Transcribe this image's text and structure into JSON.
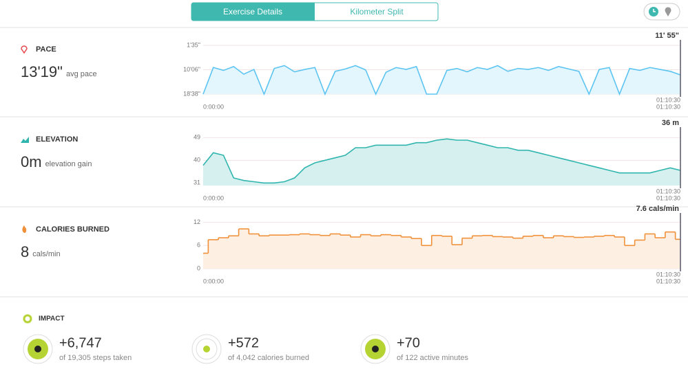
{
  "tabs": [
    "Exercise Details",
    "Kilometer Split"
  ],
  "metrics": [
    {
      "title": "PACE",
      "value": "13'19\"",
      "unit": "avg pace",
      "chart": {
        "type": "area",
        "xlim": [
          0,
          4230
        ],
        "ylim": [
          1118,
          95
        ],
        "grid": true,
        "yticks": [
          {
            "value": 95,
            "label": "1'35\""
          },
          {
            "value": 606,
            "label": "10'06\""
          },
          {
            "value": 1118,
            "label": "18'38\""
          }
        ],
        "xticks": [
          {
            "value": 0,
            "label": "0:00:00"
          },
          {
            "value": 4230,
            "label": "01:10:30"
          }
        ],
        "cursor": {
          "x": {
            "value": 4230,
            "label": "01:10:30"
          },
          "y": {
            "value": 715,
            "label": "11' 55\""
          }
        },
        "series": [
          {
            "color": "#5bc4f1",
            "fill": "#e3f5fd",
            "x": [
              0,
              90,
              180,
              270,
              360,
              450,
              540,
              630,
              720,
              810,
              900,
              990,
              1080,
              1170,
              1260,
              1350,
              1440,
              1530,
              1620,
              1710,
              1800,
              1890,
              1980,
              2070,
              2160,
              2250,
              2340,
              2430,
              2520,
              2610,
              2700,
              2790,
              2880,
              2970,
              3060,
              3150,
              3240,
              3330,
              3420,
              3510,
              3600,
              3690,
              3780,
              3870,
              3960,
              4050,
              4140,
              4230
            ],
            "values": [
              1118,
              560,
              620,
              540,
              700,
              600,
              1118,
              580,
              520,
              650,
              600,
              560,
              1118,
              640,
              590,
              520,
              610,
              1118,
              660,
              560,
              600,
              540,
              1118,
              1118,
              620,
              580,
              650,
              560,
              600,
              520,
              640,
              580,
              600,
              560,
              620,
              540,
              590,
              640,
              1118,
              600,
              560,
              1118,
              580,
              620,
              560,
              600,
              640,
              715
            ]
          }
        ]
      }
    },
    {
      "title": "ELEVATION",
      "value": "0m",
      "unit": "elevation gain",
      "chart": {
        "type": "area",
        "xlim": [
          0,
          4230
        ],
        "ylim": [
          30,
          51
        ],
        "grid": true,
        "yticks": [
          31,
          40,
          49
        ],
        "xticks": [
          {
            "value": 0,
            "label": "0:00:00"
          },
          {
            "value": 4230,
            "label": "01:10:30"
          }
        ],
        "cursor": {
          "x": {
            "value": 4230,
            "label": "01:10:30"
          },
          "y": {
            "value": 36,
            "label": "36 m"
          }
        },
        "series": [
          {
            "color": "#2fb5ae",
            "fill": "#d5f0ee",
            "x": [
              0,
              90,
              180,
              270,
              360,
              450,
              540,
              630,
              720,
              810,
              900,
              990,
              1080,
              1170,
              1260,
              1350,
              1440,
              1530,
              1620,
              1710,
              1800,
              1890,
              1980,
              2070,
              2160,
              2250,
              2340,
              2430,
              2520,
              2610,
              2700,
              2790,
              2880,
              2970,
              3060,
              3150,
              3240,
              3330,
              3420,
              3510,
              3600,
              3690,
              3780,
              3870,
              3960,
              4050,
              4140,
              4230
            ],
            "values": [
              38,
              43,
              42,
              33,
              32,
              31.5,
              31,
              31,
              31.5,
              33,
              37,
              39,
              40,
              41,
              42,
              45,
              45,
              46,
              46,
              46,
              46,
              47,
              47,
              48,
              48.5,
              48,
              48,
              47,
              46,
              45,
              45,
              44,
              44,
              43,
              42,
              41,
              40,
              39,
              38,
              37,
              36,
              35,
              35,
              35,
              35,
              36,
              37,
              36
            ]
          }
        ]
      }
    },
    {
      "title": "CALORIES BURNED",
      "value": "8",
      "unit": "cals/min",
      "chart": {
        "type": "step",
        "xlim": [
          0,
          4230
        ],
        "ylim": [
          0,
          13
        ],
        "grid": true,
        "yticks": [
          0,
          6,
          12
        ],
        "xticks": [
          {
            "value": 0,
            "label": "0:00:00"
          },
          {
            "value": 4230,
            "label": "01:10:30"
          }
        ],
        "cursor": {
          "x": {
            "value": 4230,
            "label": "01:10:30"
          },
          "y": {
            "value": 7.6,
            "label": "7.6 cals/min"
          }
        },
        "series": [
          {
            "color": "#f0913a",
            "fill": "#fdefe2",
            "x": [
              0,
              90,
              180,
              270,
              360,
              450,
              540,
              630,
              720,
              810,
              900,
              990,
              1080,
              1170,
              1260,
              1350,
              1440,
              1530,
              1620,
              1710,
              1800,
              1890,
              1980,
              2070,
              2160,
              2250,
              2340,
              2430,
              2520,
              2610,
              2700,
              2790,
              2880,
              2970,
              3060,
              3150,
              3240,
              3330,
              3420,
              3510,
              3600,
              3690,
              3780,
              3870,
              3960,
              4050,
              4140,
              4230
            ],
            "values": [
              4,
              7.5,
              8,
              8.5,
              10.3,
              9,
              8.5,
              8.7,
              8.7,
              8.8,
              9,
              8.8,
              8.6,
              9,
              8.7,
              8.2,
              8.8,
              8.5,
              8.8,
              8.6,
              8.2,
              7.8,
              6,
              8.6,
              8.4,
              6.2,
              7.9,
              8.5,
              8.6,
              8.3,
              8.2,
              7.9,
              8.4,
              8.6,
              8,
              8.5,
              8.3,
              8.1,
              8.2,
              8.4,
              8.6,
              8.2,
              6,
              7.4,
              9,
              8,
              9.5,
              7.6
            ]
          }
        ]
      }
    }
  ],
  "impact": {
    "title": "IMPACT",
    "items": [
      {
        "value": "+6,747",
        "caption": "of 19,305 steps taken"
      },
      {
        "value": "+572",
        "caption": "of 4,042 calories burned"
      },
      {
        "value": "+70",
        "caption": "of 122 active minutes"
      }
    ]
  }
}
